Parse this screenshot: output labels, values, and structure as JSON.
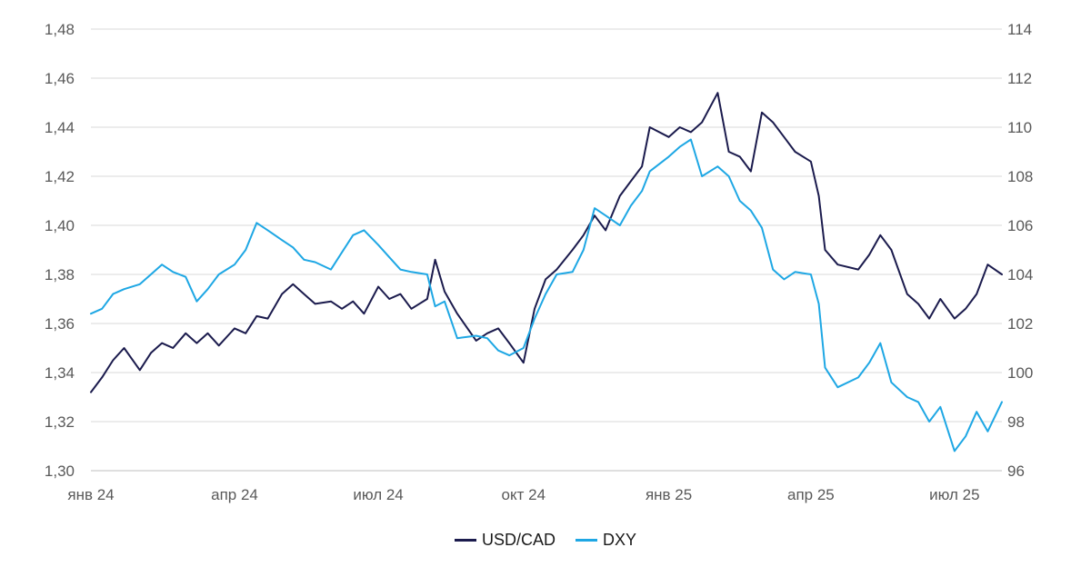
{
  "chart_data": {
    "type": "line",
    "title": "",
    "xlabel": "",
    "ylabel_left": "",
    "ylabel_right": "",
    "x_tick_labels": [
      "янв 24",
      "апр 24",
      "июл 24",
      "окт 24",
      "янв 25",
      "апр 25",
      "июл 25"
    ],
    "x_tick_dates": [
      "2024-01-01",
      "2024-04-01",
      "2024-07-01",
      "2024-10-01",
      "2025-01-01",
      "2025-04-01",
      "2025-07-01"
    ],
    "x_range": [
      "2024-01-01",
      "2025-07-31"
    ],
    "y_left": {
      "min": 1.3,
      "max": 1.48,
      "ticks": [
        "1,30",
        "1,32",
        "1,34",
        "1,36",
        "1,38",
        "1,40",
        "1,42",
        "1,44",
        "1,46",
        "1,48"
      ]
    },
    "y_right": {
      "min": 96,
      "max": 114,
      "ticks": [
        "96",
        "98",
        "100",
        "102",
        "104",
        "106",
        "108",
        "110",
        "112",
        "114"
      ]
    },
    "grid": "horizontal",
    "legend_position": "bottom",
    "series": [
      {
        "name": "USD/CAD",
        "axis": "left",
        "color": "#1b1b4d",
        "points": [
          [
            "2024-01-01",
            1.332
          ],
          [
            "2024-01-08",
            1.338
          ],
          [
            "2024-01-15",
            1.345
          ],
          [
            "2024-01-22",
            1.35
          ],
          [
            "2024-02-01",
            1.341
          ],
          [
            "2024-02-08",
            1.348
          ],
          [
            "2024-02-15",
            1.352
          ],
          [
            "2024-02-22",
            1.35
          ],
          [
            "2024-03-01",
            1.356
          ],
          [
            "2024-03-08",
            1.352
          ],
          [
            "2024-03-15",
            1.356
          ],
          [
            "2024-03-22",
            1.351
          ],
          [
            "2024-04-01",
            1.358
          ],
          [
            "2024-04-08",
            1.356
          ],
          [
            "2024-04-15",
            1.363
          ],
          [
            "2024-04-22",
            1.362
          ],
          [
            "2024-05-01",
            1.372
          ],
          [
            "2024-05-08",
            1.376
          ],
          [
            "2024-05-15",
            1.372
          ],
          [
            "2024-05-22",
            1.368
          ],
          [
            "2024-06-01",
            1.369
          ],
          [
            "2024-06-08",
            1.366
          ],
          [
            "2024-06-15",
            1.369
          ],
          [
            "2024-06-22",
            1.364
          ],
          [
            "2024-07-01",
            1.375
          ],
          [
            "2024-07-08",
            1.37
          ],
          [
            "2024-07-15",
            1.372
          ],
          [
            "2024-07-22",
            1.366
          ],
          [
            "2024-08-01",
            1.37
          ],
          [
            "2024-08-06",
            1.386
          ],
          [
            "2024-08-12",
            1.373
          ],
          [
            "2024-08-20",
            1.364
          ],
          [
            "2024-09-01",
            1.353
          ],
          [
            "2024-09-08",
            1.356
          ],
          [
            "2024-09-15",
            1.358
          ],
          [
            "2024-09-22",
            1.352
          ],
          [
            "2024-10-01",
            1.344
          ],
          [
            "2024-10-08",
            1.366
          ],
          [
            "2024-10-15",
            1.378
          ],
          [
            "2024-10-22",
            1.382
          ],
          [
            "2024-11-01",
            1.39
          ],
          [
            "2024-11-08",
            1.396
          ],
          [
            "2024-11-15",
            1.404
          ],
          [
            "2024-11-22",
            1.398
          ],
          [
            "2024-12-01",
            1.412
          ],
          [
            "2024-12-08",
            1.418
          ],
          [
            "2024-12-15",
            1.424
          ],
          [
            "2024-12-20",
            1.44
          ],
          [
            "2025-01-01",
            1.436
          ],
          [
            "2025-01-08",
            1.44
          ],
          [
            "2025-01-15",
            1.438
          ],
          [
            "2025-01-22",
            1.442
          ],
          [
            "2025-02-01",
            1.454
          ],
          [
            "2025-02-08",
            1.43
          ],
          [
            "2025-02-15",
            1.428
          ],
          [
            "2025-02-22",
            1.422
          ],
          [
            "2025-03-01",
            1.446
          ],
          [
            "2025-03-08",
            1.442
          ],
          [
            "2025-03-15",
            1.436
          ],
          [
            "2025-03-22",
            1.43
          ],
          [
            "2025-04-01",
            1.426
          ],
          [
            "2025-04-06",
            1.412
          ],
          [
            "2025-04-10",
            1.39
          ],
          [
            "2025-04-18",
            1.384
          ],
          [
            "2025-05-01",
            1.382
          ],
          [
            "2025-05-08",
            1.388
          ],
          [
            "2025-05-15",
            1.396
          ],
          [
            "2025-05-22",
            1.39
          ],
          [
            "2025-06-01",
            1.372
          ],
          [
            "2025-06-08",
            1.368
          ],
          [
            "2025-06-15",
            1.362
          ],
          [
            "2025-06-22",
            1.37
          ],
          [
            "2025-07-01",
            1.362
          ],
          [
            "2025-07-08",
            1.366
          ],
          [
            "2025-07-15",
            1.372
          ],
          [
            "2025-07-22",
            1.384
          ],
          [
            "2025-07-31",
            1.38
          ]
        ]
      },
      {
        "name": "DXY",
        "axis": "right",
        "color": "#1ea7e4",
        "points": [
          [
            "2024-01-01",
            102.4
          ],
          [
            "2024-01-08",
            102.6
          ],
          [
            "2024-01-15",
            103.2
          ],
          [
            "2024-01-22",
            103.4
          ],
          [
            "2024-02-01",
            103.6
          ],
          [
            "2024-02-08",
            104.0
          ],
          [
            "2024-02-15",
            104.4
          ],
          [
            "2024-02-22",
            104.1
          ],
          [
            "2024-03-01",
            103.9
          ],
          [
            "2024-03-08",
            102.9
          ],
          [
            "2024-03-15",
            103.4
          ],
          [
            "2024-03-22",
            104.0
          ],
          [
            "2024-04-01",
            104.4
          ],
          [
            "2024-04-08",
            105.0
          ],
          [
            "2024-04-15",
            106.1
          ],
          [
            "2024-04-22",
            105.8
          ],
          [
            "2024-05-01",
            105.4
          ],
          [
            "2024-05-08",
            105.1
          ],
          [
            "2024-05-15",
            104.6
          ],
          [
            "2024-05-22",
            104.5
          ],
          [
            "2024-06-01",
            104.2
          ],
          [
            "2024-06-08",
            104.9
          ],
          [
            "2024-06-15",
            105.6
          ],
          [
            "2024-06-22",
            105.8
          ],
          [
            "2024-07-01",
            105.2
          ],
          [
            "2024-07-08",
            104.7
          ],
          [
            "2024-07-15",
            104.2
          ],
          [
            "2024-07-22",
            104.1
          ],
          [
            "2024-08-01",
            104.0
          ],
          [
            "2024-08-06",
            102.7
          ],
          [
            "2024-08-12",
            102.9
          ],
          [
            "2024-08-20",
            101.4
          ],
          [
            "2024-09-01",
            101.5
          ],
          [
            "2024-09-08",
            101.4
          ],
          [
            "2024-09-15",
            100.9
          ],
          [
            "2024-09-22",
            100.7
          ],
          [
            "2024-10-01",
            101.0
          ],
          [
            "2024-10-08",
            102.2
          ],
          [
            "2024-10-15",
            103.2
          ],
          [
            "2024-10-22",
            104.0
          ],
          [
            "2024-11-01",
            104.1
          ],
          [
            "2024-11-08",
            105.0
          ],
          [
            "2024-11-15",
            106.7
          ],
          [
            "2024-11-22",
            106.4
          ],
          [
            "2024-12-01",
            106.0
          ],
          [
            "2024-12-08",
            106.8
          ],
          [
            "2024-12-15",
            107.4
          ],
          [
            "2024-12-20",
            108.2
          ],
          [
            "2025-01-01",
            108.8
          ],
          [
            "2025-01-08",
            109.2
          ],
          [
            "2025-01-15",
            109.5
          ],
          [
            "2025-01-22",
            108.0
          ],
          [
            "2025-02-01",
            108.4
          ],
          [
            "2025-02-08",
            108.0
          ],
          [
            "2025-02-15",
            107.0
          ],
          [
            "2025-02-22",
            106.6
          ],
          [
            "2025-03-01",
            105.9
          ],
          [
            "2025-03-08",
            104.2
          ],
          [
            "2025-03-15",
            103.8
          ],
          [
            "2025-03-22",
            104.1
          ],
          [
            "2025-04-01",
            104.0
          ],
          [
            "2025-04-06",
            102.8
          ],
          [
            "2025-04-10",
            100.2
          ],
          [
            "2025-04-18",
            99.4
          ],
          [
            "2025-05-01",
            99.8
          ],
          [
            "2025-05-08",
            100.4
          ],
          [
            "2025-05-15",
            101.2
          ],
          [
            "2025-05-22",
            99.6
          ],
          [
            "2025-06-01",
            99.0
          ],
          [
            "2025-06-08",
            98.8
          ],
          [
            "2025-06-15",
            98.0
          ],
          [
            "2025-06-22",
            98.6
          ],
          [
            "2025-07-01",
            96.8
          ],
          [
            "2025-07-08",
            97.4
          ],
          [
            "2025-07-15",
            98.4
          ],
          [
            "2025-07-22",
            97.6
          ],
          [
            "2025-07-31",
            98.8
          ]
        ]
      }
    ]
  }
}
